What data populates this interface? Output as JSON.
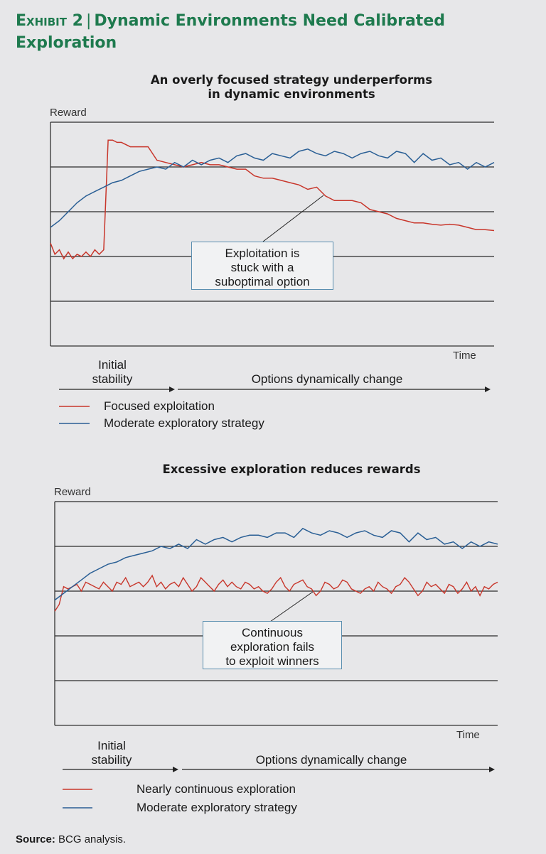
{
  "exhibit": {
    "label": "Exhibit 2",
    "title": "Dynamic Environments Need Calibrated Exploration"
  },
  "source": {
    "label": "Source:",
    "text": "BCG analysis."
  },
  "chart_data": [
    {
      "type": "line",
      "title": "An overly focused strategy underperforms in dynamic environments",
      "title_line1": "An overly focused strategy underperforms",
      "title_line2": "in dynamic environments",
      "xlabel": "Time",
      "ylabel": "Reward",
      "ylim": [
        0,
        5
      ],
      "xlim": [
        0,
        100
      ],
      "grid": true,
      "phases": [
        {
          "line1": "Initial",
          "line2": "stability"
        },
        {
          "line1": "Options dynamically change",
          "line2": ""
        }
      ],
      "annotation": {
        "line1": "Exploitation is",
        "line2": "stuck with a",
        "line3": "suboptimal option"
      },
      "series": [
        {
          "name": "Focused exploitation",
          "color": "#c8362b",
          "x": [
            0,
            1,
            2,
            3,
            4,
            5,
            6,
            7,
            8,
            9,
            10,
            11,
            12,
            13,
            14,
            15,
            16,
            18,
            20,
            22,
            24,
            26,
            28,
            30,
            32,
            34,
            36,
            38,
            40,
            42,
            44,
            46,
            48,
            50,
            52,
            54,
            56,
            58,
            60,
            62,
            64,
            66,
            68,
            70,
            72,
            74,
            76,
            78,
            80,
            82,
            84,
            86,
            88,
            90,
            92,
            94,
            96,
            98,
            100
          ],
          "values": [
            2.3,
            2.05,
            2.15,
            1.95,
            2.1,
            1.95,
            2.05,
            2.0,
            2.1,
            2.0,
            2.15,
            2.05,
            2.15,
            4.6,
            4.6,
            4.55,
            4.55,
            4.45,
            4.45,
            4.45,
            4.15,
            4.1,
            4.05,
            4.0,
            4.05,
            4.1,
            4.05,
            4.05,
            4.0,
            3.95,
            3.95,
            3.8,
            3.75,
            3.75,
            3.7,
            3.65,
            3.6,
            3.5,
            3.55,
            3.35,
            3.25,
            3.25,
            3.25,
            3.2,
            3.05,
            3.0,
            2.95,
            2.85,
            2.8,
            2.75,
            2.75,
            2.72,
            2.7,
            2.72,
            2.7,
            2.65,
            2.6,
            2.6,
            2.58
          ]
        },
        {
          "name": "Moderate exploratory strategy",
          "color": "#2a5f95",
          "x": [
            0,
            2,
            4,
            6,
            8,
            10,
            12,
            14,
            16,
            18,
            20,
            22,
            24,
            26,
            28,
            30,
            32,
            34,
            36,
            38,
            40,
            42,
            44,
            46,
            48,
            50,
            52,
            54,
            56,
            58,
            60,
            62,
            64,
            66,
            68,
            70,
            72,
            74,
            76,
            78,
            80,
            82,
            84,
            86,
            88,
            90,
            92,
            94,
            96,
            98,
            100
          ],
          "values": [
            2.65,
            2.8,
            3.0,
            3.2,
            3.35,
            3.45,
            3.55,
            3.65,
            3.7,
            3.8,
            3.9,
            3.95,
            4.0,
            3.95,
            4.1,
            4.0,
            4.15,
            4.05,
            4.15,
            4.2,
            4.1,
            4.25,
            4.3,
            4.2,
            4.15,
            4.3,
            4.25,
            4.2,
            4.35,
            4.4,
            4.3,
            4.25,
            4.35,
            4.3,
            4.2,
            4.3,
            4.35,
            4.25,
            4.2,
            4.35,
            4.3,
            4.1,
            4.3,
            4.15,
            4.2,
            4.05,
            4.1,
            3.95,
            4.1,
            4.0,
            4.1
          ]
        }
      ]
    },
    {
      "type": "line",
      "title": "Excessive exploration reduces rewards",
      "xlabel": "Time",
      "ylabel": "Reward",
      "ylim": [
        0,
        5
      ],
      "xlim": [
        0,
        100
      ],
      "grid": true,
      "phases": [
        {
          "line1": "Initial",
          "line2": "stability"
        },
        {
          "line1": "Options dynamically change",
          "line2": ""
        }
      ],
      "annotation": {
        "line1": "Continuous",
        "line2": "exploration fails",
        "line3": "to exploit winners"
      },
      "series": [
        {
          "name": "Nearly continuous exploration",
          "color": "#c8362b",
          "x": [
            0,
            1,
            2,
            3,
            4,
            5,
            6,
            7,
            8,
            9,
            10,
            11,
            12,
            13,
            14,
            15,
            16,
            17,
            18,
            19,
            20,
            21,
            22,
            23,
            24,
            25,
            26,
            27,
            28,
            29,
            30,
            31,
            32,
            33,
            34,
            35,
            36,
            37,
            38,
            39,
            40,
            41,
            42,
            43,
            44,
            45,
            46,
            47,
            48,
            49,
            50,
            51,
            52,
            53,
            54,
            55,
            56,
            57,
            58,
            59,
            60,
            61,
            62,
            63,
            64,
            65,
            66,
            67,
            68,
            69,
            70,
            71,
            72,
            73,
            74,
            75,
            76,
            77,
            78,
            79,
            80,
            81,
            82,
            83,
            84,
            85,
            86,
            87,
            88,
            89,
            90,
            91,
            92,
            93,
            94,
            95,
            96,
            97,
            98,
            99,
            100
          ],
          "values": [
            2.55,
            2.7,
            3.1,
            3.05,
            3.1,
            3.15,
            3.0,
            3.2,
            3.15,
            3.1,
            3.05,
            3.2,
            3.1,
            3.0,
            3.2,
            3.15,
            3.3,
            3.1,
            3.15,
            3.2,
            3.1,
            3.2,
            3.35,
            3.1,
            3.2,
            3.05,
            3.15,
            3.2,
            3.1,
            3.3,
            3.15,
            3.0,
            3.1,
            3.3,
            3.2,
            3.1,
            3.0,
            3.15,
            3.25,
            3.1,
            3.2,
            3.1,
            3.05,
            3.2,
            3.15,
            3.05,
            3.1,
            3.0,
            2.95,
            3.05,
            3.2,
            3.3,
            3.1,
            3.0,
            3.15,
            3.2,
            3.25,
            3.1,
            3.05,
            2.9,
            3.0,
            3.2,
            3.15,
            3.05,
            3.1,
            3.25,
            3.2,
            3.05,
            3.0,
            2.95,
            3.05,
            3.1,
            3.0,
            3.2,
            3.1,
            3.05,
            2.95,
            3.1,
            3.15,
            3.3,
            3.2,
            3.05,
            2.9,
            3.0,
            3.2,
            3.1,
            3.15,
            3.05,
            2.95,
            3.15,
            3.1,
            2.95,
            3.05,
            3.2,
            3.0,
            3.1,
            2.9,
            3.1,
            3.05,
            3.15,
            3.2
          ]
        },
        {
          "name": "Moderate exploratory strategy",
          "color": "#2a5f95",
          "x": [
            0,
            2,
            4,
            6,
            8,
            10,
            12,
            14,
            16,
            18,
            20,
            22,
            24,
            26,
            28,
            30,
            32,
            34,
            36,
            38,
            40,
            42,
            44,
            46,
            48,
            50,
            52,
            54,
            56,
            58,
            60,
            62,
            64,
            66,
            68,
            70,
            72,
            74,
            76,
            78,
            80,
            82,
            84,
            86,
            88,
            90,
            92,
            94,
            96,
            98,
            100
          ],
          "values": [
            2.8,
            2.95,
            3.1,
            3.25,
            3.4,
            3.5,
            3.6,
            3.65,
            3.75,
            3.8,
            3.85,
            3.9,
            4.0,
            3.95,
            4.05,
            3.95,
            4.15,
            4.05,
            4.15,
            4.2,
            4.1,
            4.2,
            4.25,
            4.25,
            4.2,
            4.3,
            4.3,
            4.2,
            4.4,
            4.3,
            4.25,
            4.35,
            4.3,
            4.2,
            4.3,
            4.35,
            4.25,
            4.2,
            4.35,
            4.3,
            4.1,
            4.3,
            4.15,
            4.2,
            4.05,
            4.1,
            3.95,
            4.1,
            4.0,
            4.1,
            4.05
          ]
        }
      ]
    }
  ]
}
